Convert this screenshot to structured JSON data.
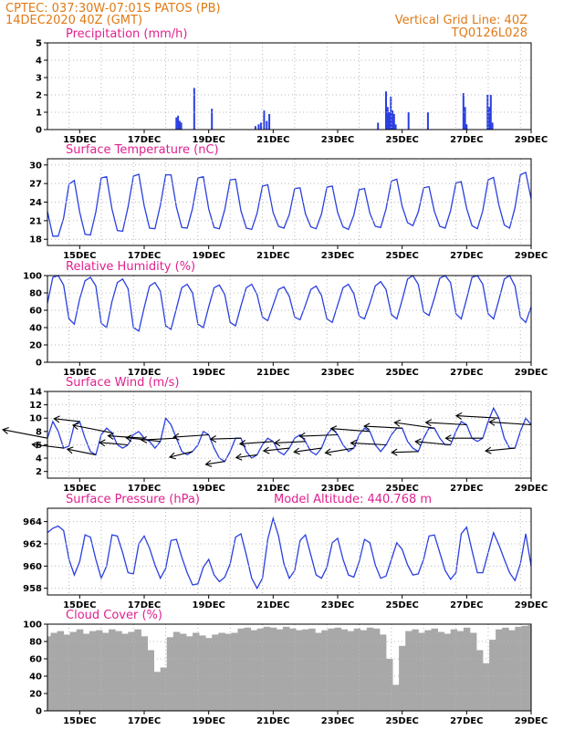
{
  "header": {
    "line1_left": "CPTEC:   037:30W-07:01S   PATOS (PB)",
    "line2_left": "14DEC2020 40Z (GMT)",
    "line1_right": "Vertical Grid Line: 40Z",
    "line2_right": "TQ0126L028"
  },
  "colors": {
    "header": "#e07a16",
    "title": "#e0208f",
    "line": "#2a3fe0",
    "cloud": "#a8a8a8",
    "grid": "#b8b8b8"
  },
  "x_axis": {
    "start": 14.0,
    "end": 29.0,
    "tick_values": [
      15,
      17,
      19,
      21,
      23,
      25,
      27,
      29
    ],
    "tick_labels": [
      "15DEC",
      "17DEC",
      "19DEC",
      "21DEC",
      "23DEC",
      "25DEC",
      "27DEC",
      "29DEC"
    ],
    "grid_values": [
      14.667,
      15.667,
      16.667,
      17.667,
      18.667,
      19.667,
      20.667,
      21.667,
      22.667,
      23.667,
      24.667,
      25.667,
      26.667,
      27.667,
      28.667
    ]
  },
  "chart_data": [
    {
      "type": "bar",
      "title": "Precipitation (mm/h)",
      "ylim": [
        0,
        5
      ],
      "yticks": [
        0,
        1,
        2,
        3,
        4,
        5
      ],
      "x": [
        18.0,
        18.05,
        18.1,
        18.15,
        18.55,
        19.1,
        20.45,
        20.55,
        20.62,
        20.72,
        20.8,
        20.88,
        24.25,
        24.5,
        24.55,
        24.6,
        24.65,
        24.7,
        24.75,
        24.8,
        25.2,
        25.8,
        26.9,
        26.95,
        27.0,
        27.65,
        27.7,
        27.75,
        27.8
      ],
      "values": [
        0.7,
        0.8,
        0.5,
        0.4,
        2.4,
        1.2,
        0.2,
        0.3,
        0.4,
        1.1,
        0.5,
        0.9,
        0.4,
        2.2,
        1.3,
        1.0,
        1.9,
        1.1,
        0.9,
        0.3,
        1.0,
        1.0,
        2.1,
        1.3,
        0.3,
        2.0,
        1.3,
        2.0,
        0.4
      ]
    },
    {
      "type": "line",
      "title": "Surface Temperature (nC)",
      "ylim": [
        17,
        31
      ],
      "yticks": [
        18,
        21,
        24,
        27,
        30
      ],
      "x": [
        14.0,
        14.166667,
        14.333333,
        14.5,
        14.666667,
        14.833333,
        15.0,
        15.166667,
        15.333333,
        15.5,
        15.666667,
        15.833333,
        16.0,
        16.166667,
        16.333333,
        16.5,
        16.666667,
        16.833333,
        17.0,
        17.166667,
        17.333333,
        17.5,
        17.666667,
        17.833333,
        18.0,
        18.166667,
        18.333333,
        18.5,
        18.666667,
        18.833333,
        19.0,
        19.166667,
        19.333333,
        19.5,
        19.666667,
        19.833333,
        20.0,
        20.166667,
        20.333333,
        20.5,
        20.666667,
        20.833333,
        21.0,
        21.166667,
        21.333333,
        21.5,
        21.666667,
        21.833333,
        22.0,
        22.166667,
        22.333333,
        22.5,
        22.666667,
        22.833333,
        23.0,
        23.166667,
        23.333333,
        23.5,
        23.666667,
        23.833333,
        24.0,
        24.166667,
        24.333333,
        24.5,
        24.666667,
        24.833333,
        25.0,
        25.166667,
        25.333333,
        25.5,
        25.666667,
        25.833333,
        26.0,
        26.166667,
        26.333333,
        26.5,
        26.666667,
        26.833333,
        27.0,
        27.166667,
        27.333333,
        27.5,
        27.666667,
        27.833333,
        28.0,
        28.166667,
        28.333333,
        28.5,
        28.666667,
        28.833333,
        29.0
      ],
      "values": [
        22.5,
        18.5,
        18.5,
        21.4,
        26.9,
        27.5,
        22.4,
        18.8,
        18.7,
        22.4,
        27.9,
        28.1,
        22.9,
        19.4,
        19.3,
        23.2,
        28.2,
        28.5,
        23.4,
        19.8,
        19.7,
        23.5,
        28.4,
        28.4,
        23.2,
        19.9,
        19.8,
        23.0,
        27.9,
        28.1,
        22.9,
        19.9,
        19.7,
        22.8,
        27.6,
        27.7,
        22.6,
        19.8,
        19.6,
        22.2,
        26.6,
        26.8,
        22.3,
        20.1,
        19.8,
        22.0,
        26.2,
        26.3,
        22.1,
        20.0,
        19.7,
        22.1,
        26.4,
        26.6,
        22.3,
        20.0,
        19.6,
        21.9,
        26.0,
        26.2,
        22.2,
        20.1,
        19.9,
        22.9,
        27.4,
        27.7,
        23.3,
        20.7,
        20.2,
        22.4,
        26.3,
        26.5,
        22.5,
        20.1,
        19.8,
        22.6,
        27.1,
        27.3,
        23.0,
        20.2,
        19.7,
        22.6,
        27.6,
        28.0,
        23.5,
        20.3,
        19.8,
        23.1,
        28.4,
        28.8,
        24.5
      ]
    },
    {
      "type": "line",
      "title": "Relative Humidity (%)",
      "ylim": [
        0,
        100
      ],
      "yticks": [
        0,
        20,
        40,
        60,
        80,
        100
      ],
      "x": [
        14.0,
        14.166667,
        14.333333,
        14.5,
        14.666667,
        14.833333,
        15.0,
        15.166667,
        15.333333,
        15.5,
        15.666667,
        15.833333,
        16.0,
        16.166667,
        16.333333,
        16.5,
        16.666667,
        16.833333,
        17.0,
        17.166667,
        17.333333,
        17.5,
        17.666667,
        17.833333,
        18.0,
        18.166667,
        18.333333,
        18.5,
        18.666667,
        18.833333,
        19.0,
        19.166667,
        19.333333,
        19.5,
        19.666667,
        19.833333,
        20.0,
        20.166667,
        20.333333,
        20.5,
        20.666667,
        20.833333,
        21.0,
        21.166667,
        21.333333,
        21.5,
        21.666667,
        21.833333,
        22.0,
        22.166667,
        22.333333,
        22.5,
        22.666667,
        22.833333,
        23.0,
        23.166667,
        23.333333,
        23.5,
        23.666667,
        23.833333,
        24.0,
        24.166667,
        24.333333,
        24.5,
        24.666667,
        24.833333,
        25.0,
        25.166667,
        25.333333,
        25.5,
        25.666667,
        25.833333,
        26.0,
        26.166667,
        26.333333,
        26.5,
        26.666667,
        26.833333,
        27.0,
        27.166667,
        27.333333,
        27.5,
        27.666667,
        27.833333,
        28.0,
        28.166667,
        28.333333,
        28.5,
        28.666667,
        28.833333,
        29.0
      ],
      "values": [
        68.0,
        98.0,
        100.0,
        89.0,
        50.0,
        44.0,
        73.0,
        94.0,
        98.0,
        88.0,
        45.0,
        40.0,
        70.0,
        92.0,
        96.0,
        85.0,
        40.0,
        36.0,
        63.0,
        88.0,
        92.0,
        82.0,
        42.0,
        38.0,
        62.0,
        86.0,
        90.0,
        80.0,
        44.0,
        40.0,
        64.0,
        86.0,
        89.0,
        78.0,
        46.0,
        42.0,
        65.0,
        86.0,
        90.0,
        78.0,
        52.0,
        48.0,
        66.0,
        84.0,
        87.0,
        76.0,
        52.0,
        49.0,
        66.0,
        84.0,
        88.0,
        77.0,
        50.0,
        46.0,
        66.0,
        86.0,
        90.0,
        79.0,
        53.0,
        50.0,
        68.0,
        88.0,
        93.0,
        84.0,
        55.0,
        50.0,
        72.0,
        96.0,
        100.0,
        90.0,
        58.0,
        54.0,
        74.0,
        97.0,
        100.0,
        92.0,
        56.0,
        50.0,
        73.0,
        98.0,
        100.0,
        90.0,
        56.0,
        50.0,
        72.0,
        96.0,
        100.0,
        88.0,
        52.0,
        46.0,
        64.0
      ]
    },
    {
      "type": "line",
      "title": "Surface Wind (m/s)",
      "ylim": [
        1,
        14
      ],
      "yticks": [
        2,
        4,
        6,
        8,
        10,
        12,
        14
      ],
      "x": [
        14.0,
        14.166667,
        14.333333,
        14.5,
        14.666667,
        14.833333,
        15.0,
        15.166667,
        15.333333,
        15.5,
        15.666667,
        15.833333,
        16.0,
        16.166667,
        16.333333,
        16.5,
        16.666667,
        16.833333,
        17.0,
        17.166667,
        17.333333,
        17.5,
        17.666667,
        17.833333,
        18.0,
        18.166667,
        18.333333,
        18.5,
        18.666667,
        18.833333,
        19.0,
        19.166667,
        19.333333,
        19.5,
        19.666667,
        19.833333,
        20.0,
        20.166667,
        20.333333,
        20.5,
        20.666667,
        20.833333,
        21.0,
        21.166667,
        21.333333,
        21.5,
        21.666667,
        21.833333,
        22.0,
        22.166667,
        22.333333,
        22.5,
        22.666667,
        22.833333,
        23.0,
        23.166667,
        23.333333,
        23.5,
        23.666667,
        23.833333,
        24.0,
        24.166667,
        24.333333,
        24.5,
        24.666667,
        24.833333,
        25.0,
        25.166667,
        25.333333,
        25.5,
        25.666667,
        25.833333,
        26.0,
        26.166667,
        26.333333,
        26.5,
        26.666667,
        26.833333,
        27.0,
        27.166667,
        27.333333,
        27.5,
        27.666667,
        27.833333,
        28.0,
        28.166667,
        28.333333,
        28.5,
        28.666667,
        28.833333,
        29.0
      ],
      "values": [
        7.0,
        9.5,
        8.0,
        5.5,
        5.8,
        9.0,
        9.5,
        7.0,
        5.0,
        4.5,
        7.5,
        8.5,
        7.8,
        6.0,
        5.5,
        6.0,
        7.5,
        8.0,
        7.0,
        6.5,
        5.5,
        6.5,
        10.0,
        9.0,
        7.0,
        5.0,
        4.5,
        5.0,
        6.0,
        8.0,
        7.5,
        5.5,
        4.0,
        3.5,
        5.0,
        7.0,
        7.0,
        5.0,
        4.0,
        4.5,
        6.0,
        7.0,
        6.5,
        5.0,
        4.5,
        5.5,
        7.0,
        7.5,
        6.5,
        5.0,
        4.5,
        5.5,
        7.5,
        8.5,
        7.5,
        6.0,
        5.0,
        5.5,
        7.5,
        8.5,
        8.0,
        6.0,
        5.0,
        6.0,
        7.5,
        8.5,
        8.5,
        6.5,
        5.5,
        5.0,
        7.0,
        8.5,
        8.5,
        7.0,
        6.0,
        6.0,
        8.0,
        9.5,
        9.0,
        7.0,
        6.5,
        7.0,
        9.5,
        11.5,
        10.0,
        7.0,
        5.5,
        5.5,
        8.0,
        10.0,
        9.0
      ],
      "vectors": {
        "x": [
          14.0,
          14.5,
          15.0,
          15.5,
          16.0,
          16.5,
          17.0,
          17.5,
          18.0,
          18.5,
          19.0,
          19.5,
          20.0,
          20.5,
          21.0,
          21.5,
          22.0,
          22.5,
          23.0,
          23.5,
          24.0,
          24.5,
          25.0,
          25.5,
          26.0,
          26.5,
          27.0,
          27.5,
          28.0,
          28.5,
          29.0
        ],
        "u": [
          -9.4,
          -6.6,
          -5.4,
          -6.0,
          -8.2,
          -6.0,
          -7.6,
          -7.2,
          -7.4,
          -4.8,
          -7.4,
          -4.0,
          -6.4,
          -4.4,
          -7.0,
          -5.4,
          -6.5,
          -5.8,
          -8.0,
          -6.0,
          -8.2,
          -7.4,
          -8.0,
          -5.6,
          -8.4,
          -7.4,
          -8.6,
          -7.8,
          -9.0,
          -6.2,
          -8.8
        ],
        "v": [
          1.8,
          0.8,
          0.6,
          1.2,
          1.6,
          0.5,
          0.5,
          0.8,
          -0.4,
          -1.2,
          -0.5,
          -0.6,
          -0.2,
          -0.6,
          -0.5,
          -0.6,
          -0.3,
          -0.8,
          -0.3,
          -1.0,
          0.6,
          0.4,
          0.4,
          -0.2,
          1.2,
          0.7,
          0.5,
          0.0,
          0.5,
          -0.6,
          0.6
        ]
      }
    },
    {
      "type": "line",
      "title": "Surface Pressure (hPa)",
      "subtitle": "Model Altitude: 440.768 m",
      "ylim": [
        957.4,
        965.2
      ],
      "yticks": [
        958,
        960,
        962,
        964
      ],
      "x": [
        14.0,
        14.166667,
        14.333333,
        14.5,
        14.666667,
        14.833333,
        15.0,
        15.166667,
        15.333333,
        15.5,
        15.666667,
        15.833333,
        16.0,
        16.166667,
        16.333333,
        16.5,
        16.666667,
        16.833333,
        17.0,
        17.166667,
        17.333333,
        17.5,
        17.666667,
        17.833333,
        18.0,
        18.166667,
        18.333333,
        18.5,
        18.666667,
        18.833333,
        19.0,
        19.166667,
        19.333333,
        19.5,
        19.666667,
        19.833333,
        20.0,
        20.166667,
        20.333333,
        20.5,
        20.666667,
        20.833333,
        21.0,
        21.166667,
        21.333333,
        21.5,
        21.666667,
        21.833333,
        22.0,
        22.166667,
        22.333333,
        22.5,
        22.666667,
        22.833333,
        23.0,
        23.166667,
        23.333333,
        23.5,
        23.666667,
        23.833333,
        24.0,
        24.166667,
        24.333333,
        24.5,
        24.666667,
        24.833333,
        25.0,
        25.166667,
        25.333333,
        25.5,
        25.666667,
        25.833333,
        26.0,
        26.166667,
        26.333333,
        26.5,
        26.666667,
        26.833333,
        27.0,
        27.166667,
        27.333333,
        27.5,
        27.666667,
        27.833333,
        28.0,
        28.166667,
        28.333333,
        28.5,
        28.666667,
        28.833333,
        29.0
      ],
      "values": [
        963.0,
        963.4,
        963.6,
        963.2,
        960.6,
        959.2,
        960.4,
        962.8,
        962.6,
        960.6,
        958.9,
        960.0,
        962.8,
        962.7,
        961.2,
        959.4,
        959.3,
        962.0,
        962.7,
        961.6,
        960.1,
        958.9,
        959.8,
        962.3,
        962.4,
        960.8,
        959.4,
        958.3,
        958.4,
        959.9,
        960.6,
        959.2,
        958.6,
        959.0,
        960.2,
        962.6,
        962.9,
        961.0,
        958.9,
        958.0,
        958.9,
        962.4,
        964.3,
        962.7,
        960.2,
        958.9,
        959.6,
        962.3,
        962.8,
        961.0,
        959.2,
        958.9,
        959.9,
        962.1,
        962.5,
        960.6,
        959.2,
        959.0,
        960.4,
        962.4,
        962.1,
        960.1,
        958.9,
        959.1,
        960.6,
        962.1,
        961.5,
        960.1,
        959.2,
        959.3,
        960.6,
        962.7,
        962.8,
        961.2,
        959.6,
        958.8,
        959.4,
        962.9,
        963.5,
        961.4,
        959.4,
        959.4,
        961.2,
        963.0,
        961.9,
        960.6,
        959.4,
        958.7,
        960.2,
        962.9,
        960.0
      ]
    },
    {
      "type": "area",
      "title": "Cloud Cover (%)",
      "ylim": [
        0,
        100
      ],
      "yticks": [
        0,
        20,
        40,
        60,
        80,
        100
      ],
      "x": [
        14.0,
        14.2,
        14.4,
        14.6,
        14.8,
        15.0,
        15.2,
        15.4,
        15.6,
        15.8,
        16.0,
        16.2,
        16.4,
        16.6,
        16.8,
        17.0,
        17.2,
        17.4,
        17.6,
        17.8,
        18.0,
        18.2,
        18.4,
        18.6,
        18.8,
        19.0,
        19.2,
        19.4,
        19.6,
        19.8,
        20.0,
        20.2,
        20.4,
        20.6,
        20.8,
        21.0,
        21.2,
        21.4,
        21.6,
        21.8,
        22.0,
        22.2,
        22.4,
        22.6,
        22.8,
        23.0,
        23.2,
        23.4,
        23.6,
        23.8,
        24.0,
        24.2,
        24.4,
        24.6,
        24.8,
        25.0,
        25.2,
        25.4,
        25.6,
        25.8,
        26.0,
        26.2,
        26.4,
        26.6,
        26.8,
        27.0,
        27.2,
        27.4,
        27.6,
        27.8,
        28.0,
        28.2,
        28.4,
        28.6,
        28.8,
        29.0
      ],
      "values": [
        86,
        90,
        92,
        88,
        91,
        94,
        89,
        92,
        93,
        90,
        94,
        92,
        89,
        91,
        94,
        86,
        70,
        45,
        50,
        85,
        91,
        89,
        86,
        90,
        87,
        84,
        88,
        90,
        89,
        90,
        95,
        96,
        93,
        95,
        97,
        96,
        94,
        97,
        95,
        93,
        94,
        95,
        90,
        93,
        95,
        96,
        94,
        92,
        95,
        93,
        96,
        95,
        88,
        60,
        30,
        75,
        92,
        94,
        90,
        93,
        95,
        91,
        89,
        94,
        92,
        96,
        90,
        70,
        55,
        82,
        94,
        96,
        93,
        97,
        98,
        99
      ]
    }
  ]
}
